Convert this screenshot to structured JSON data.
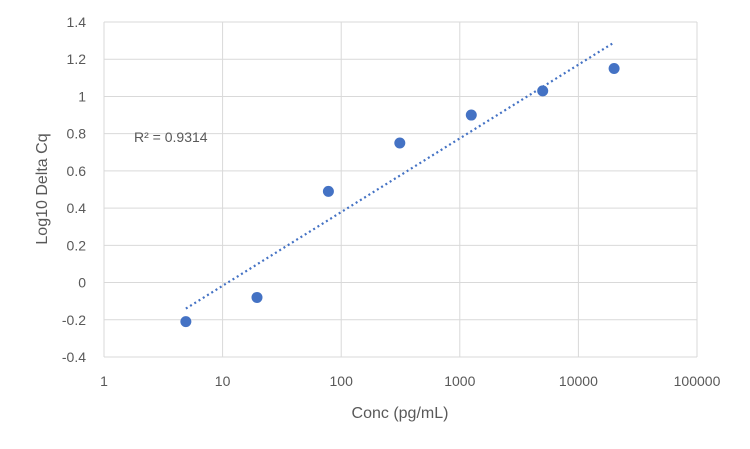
{
  "chart_data": {
    "type": "scatter",
    "x_scale": "log",
    "xlim": [
      1,
      100000
    ],
    "ylim": [
      -0.4,
      1.4
    ],
    "x_ticks": [
      1,
      10,
      100,
      1000,
      10000,
      100000
    ],
    "x_tick_labels": [
      "1",
      "10",
      "100",
      "1000",
      "10000",
      "100000"
    ],
    "y_ticks": [
      -0.4,
      -0.2,
      0,
      0.2,
      0.4,
      0.6,
      0.8,
      1,
      1.2,
      1.4
    ],
    "y_tick_labels": [
      "-0.4",
      "-0.2",
      "0",
      "0.2",
      "0.4",
      "0.6",
      "0.8",
      "1",
      "1.2",
      "1.4"
    ],
    "grid": true,
    "xlabel": "Conc (pg/mL)",
    "ylabel": "Log10 Delta Cq",
    "series": [
      {
        "color": "#4472C4",
        "points": [
          {
            "x": 4.9,
            "y": -0.21
          },
          {
            "x": 19.5,
            "y": -0.08
          },
          {
            "x": 78,
            "y": 0.49
          },
          {
            "x": 312,
            "y": 0.75
          },
          {
            "x": 1250,
            "y": 0.9
          },
          {
            "x": 5000,
            "y": 1.03
          },
          {
            "x": 20000,
            "y": 1.15
          }
        ]
      }
    ],
    "trendline": {
      "type": "logarithmic",
      "style": "dotted",
      "color": "#4472C4",
      "from": {
        "x": 4.9,
        "y": -0.14
      },
      "to": {
        "x": 20000,
        "y": 1.29
      },
      "annotation": "R² = 0.9314"
    }
  }
}
